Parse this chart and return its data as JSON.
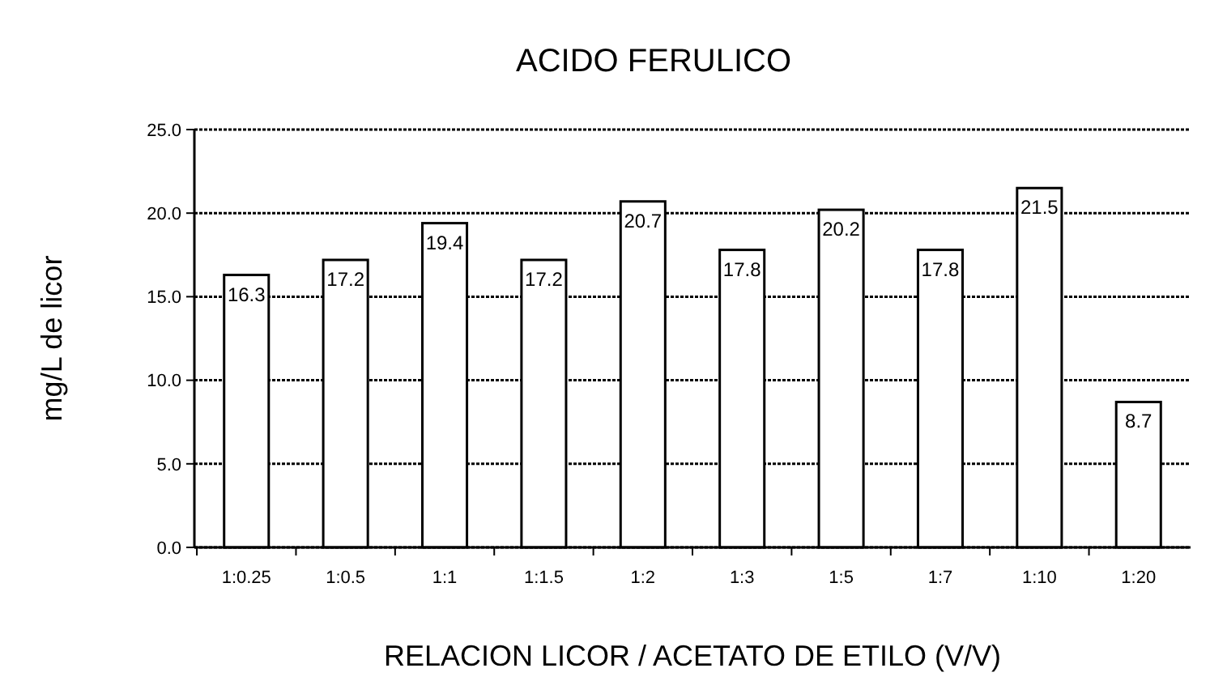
{
  "chart_data": {
    "type": "bar",
    "title": "ACIDO FERULICO",
    "xlabel": "RELACION LICOR / ACETATO DE ETILO (V/V)",
    "ylabel": "mg/L de licor",
    "categories": [
      "1:0.25",
      "1:0.5",
      "1:1",
      "1:1.5",
      "1:2",
      "1:3",
      "1:5",
      "1:7",
      "1:10",
      "1:20"
    ],
    "values": [
      16.3,
      17.2,
      19.4,
      17.2,
      20.7,
      17.8,
      20.2,
      17.8,
      21.5,
      8.7
    ],
    "color": "#ffffff",
    "ylim": [
      0,
      25
    ],
    "yticks": [
      {
        "value": 0,
        "label": "0.0"
      },
      {
        "value": 5,
        "label": "5.0"
      },
      {
        "value": 10,
        "label": "10.0"
      },
      {
        "value": 15,
        "label": "15.0"
      },
      {
        "value": 20,
        "label": "20.0"
      },
      {
        "value": 25,
        "label": "25.0"
      }
    ],
    "grid": "y",
    "data_labels": true
  }
}
